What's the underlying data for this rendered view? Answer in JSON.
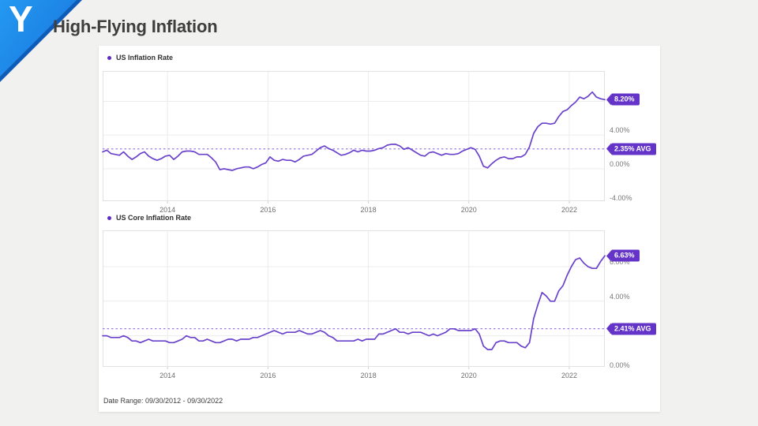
{
  "slide": {
    "title": "High-Flying Inflation",
    "logo_letter": "Y"
  },
  "footer": {
    "date_range_label": "Date Range: 09/30/2012 - 09/30/2022"
  },
  "colors": {
    "line_purple": "#6a42cb",
    "avg_line_purple": "#9a7fe2",
    "tag_purple": "#6434c9",
    "legend_dot_purple": "#5e2bc9",
    "logo_blue": "#1b7fe2",
    "grid_gray": "#ececec",
    "border_gray": "#e2e2e2"
  },
  "chart_data": [
    {
      "type": "line",
      "legend": "US Inflation Rate",
      "x_range": [
        2012.708,
        2022.708
      ],
      "ylim": [
        -3.85,
        11.6
      ],
      "grid": true,
      "legend_position": "top-left",
      "y_gridlines": [
        8,
        4,
        0,
        -4
      ],
      "y_tick_labels": [
        {
          "value": 4,
          "label": "4.00%"
        },
        {
          "value": 0,
          "label": "0.00%"
        },
        {
          "value": -4,
          "label": "-4.00%"
        }
      ],
      "x_ticks": [
        {
          "value": 2014,
          "label": "2014"
        },
        {
          "value": 2016,
          "label": "2016"
        },
        {
          "value": 2018,
          "label": "2018"
        },
        {
          "value": 2020,
          "label": "2020"
        },
        {
          "value": 2022,
          "label": "2022"
        }
      ],
      "avg": {
        "value": 2.35,
        "label": "2.35% AVG"
      },
      "end": {
        "value": 8.2,
        "label": "8.20%"
      },
      "values": [
        2.0,
        2.2,
        1.8,
        1.7,
        1.6,
        2.0,
        1.5,
        1.1,
        1.4,
        1.8,
        2.0,
        1.5,
        1.2,
        1.0,
        1.2,
        1.5,
        1.6,
        1.1,
        1.5,
        2.0,
        2.1,
        2.1,
        2.0,
        1.7,
        1.7,
        1.7,
        1.3,
        0.8,
        -0.1,
        0.0,
        -0.1,
        -0.2,
        0.0,
        0.1,
        0.2,
        0.2,
        0.0,
        0.2,
        0.5,
        0.7,
        1.4,
        1.0,
        0.9,
        1.1,
        1.0,
        1.0,
        0.8,
        1.1,
        1.5,
        1.6,
        1.7,
        2.1,
        2.5,
        2.7,
        2.4,
        2.2,
        1.9,
        1.6,
        1.7,
        1.9,
        2.2,
        2.0,
        2.2,
        2.1,
        2.1,
        2.2,
        2.4,
        2.5,
        2.8,
        2.9,
        2.9,
        2.7,
        2.3,
        2.5,
        2.2,
        1.9,
        1.6,
        1.5,
        1.9,
        2.0,
        1.8,
        1.6,
        1.8,
        1.7,
        1.7,
        1.8,
        2.1,
        2.3,
        2.5,
        2.3,
        1.5,
        0.3,
        0.1,
        0.6,
        1.0,
        1.3,
        1.4,
        1.2,
        1.2,
        1.4,
        1.4,
        1.7,
        2.6,
        4.2,
        5.0,
        5.4,
        5.4,
        5.3,
        5.4,
        6.2,
        6.8,
        7.0,
        7.5,
        7.9,
        8.5,
        8.3,
        8.6,
        9.1,
        8.5,
        8.3,
        8.2
      ]
    },
    {
      "type": "line",
      "legend": "US Core Inflation Rate",
      "x_range": [
        2012.708,
        2022.708
      ],
      "ylim": [
        0.2,
        8.1
      ],
      "grid": true,
      "legend_position": "top-left",
      "y_gridlines": [
        6,
        4,
        2
      ],
      "y_tick_labels": [
        {
          "value": 6,
          "label": "6.00%"
        },
        {
          "value": 4,
          "label": "4.00%"
        },
        {
          "value": 2,
          "label": "2.00%"
        },
        {
          "value": 0,
          "label": "0.00%"
        }
      ],
      "x_ticks": [
        {
          "value": 2014,
          "label": "2014"
        },
        {
          "value": 2016,
          "label": "2016"
        },
        {
          "value": 2018,
          "label": "2018"
        },
        {
          "value": 2020,
          "label": "2020"
        },
        {
          "value": 2022,
          "label": "2022"
        }
      ],
      "avg": {
        "value": 2.41,
        "label": "2.41% AVG"
      },
      "end": {
        "value": 6.63,
        "label": "6.63%"
      },
      "values": [
        2.0,
        2.0,
        1.9,
        1.9,
        1.9,
        2.0,
        1.9,
        1.7,
        1.7,
        1.6,
        1.7,
        1.8,
        1.7,
        1.7,
        1.7,
        1.7,
        1.6,
        1.6,
        1.7,
        1.8,
        2.0,
        1.9,
        1.9,
        1.7,
        1.7,
        1.8,
        1.7,
        1.6,
        1.6,
        1.7,
        1.8,
        1.8,
        1.7,
        1.8,
        1.8,
        1.8,
        1.9,
        1.9,
        2.0,
        2.1,
        2.2,
        2.3,
        2.2,
        2.1,
        2.2,
        2.2,
        2.2,
        2.3,
        2.2,
        2.1,
        2.1,
        2.2,
        2.3,
        2.2,
        2.0,
        1.9,
        1.7,
        1.7,
        1.7,
        1.7,
        1.7,
        1.8,
        1.7,
        1.8,
        1.8,
        1.8,
        2.1,
        2.1,
        2.2,
        2.3,
        2.4,
        2.2,
        2.2,
        2.1,
        2.2,
        2.2,
        2.2,
        2.1,
        2.0,
        2.1,
        2.0,
        2.1,
        2.2,
        2.4,
        2.4,
        2.3,
        2.3,
        2.3,
        2.3,
        2.4,
        2.1,
        1.4,
        1.2,
        1.2,
        1.6,
        1.7,
        1.7,
        1.6,
        1.6,
        1.6,
        1.4,
        1.3,
        1.6,
        3.0,
        3.8,
        4.5,
        4.3,
        4.0,
        4.0,
        4.6,
        4.9,
        5.5,
        6.0,
        6.4,
        6.5,
        6.2,
        6.0,
        5.9,
        5.9,
        6.3,
        6.63
      ]
    }
  ]
}
